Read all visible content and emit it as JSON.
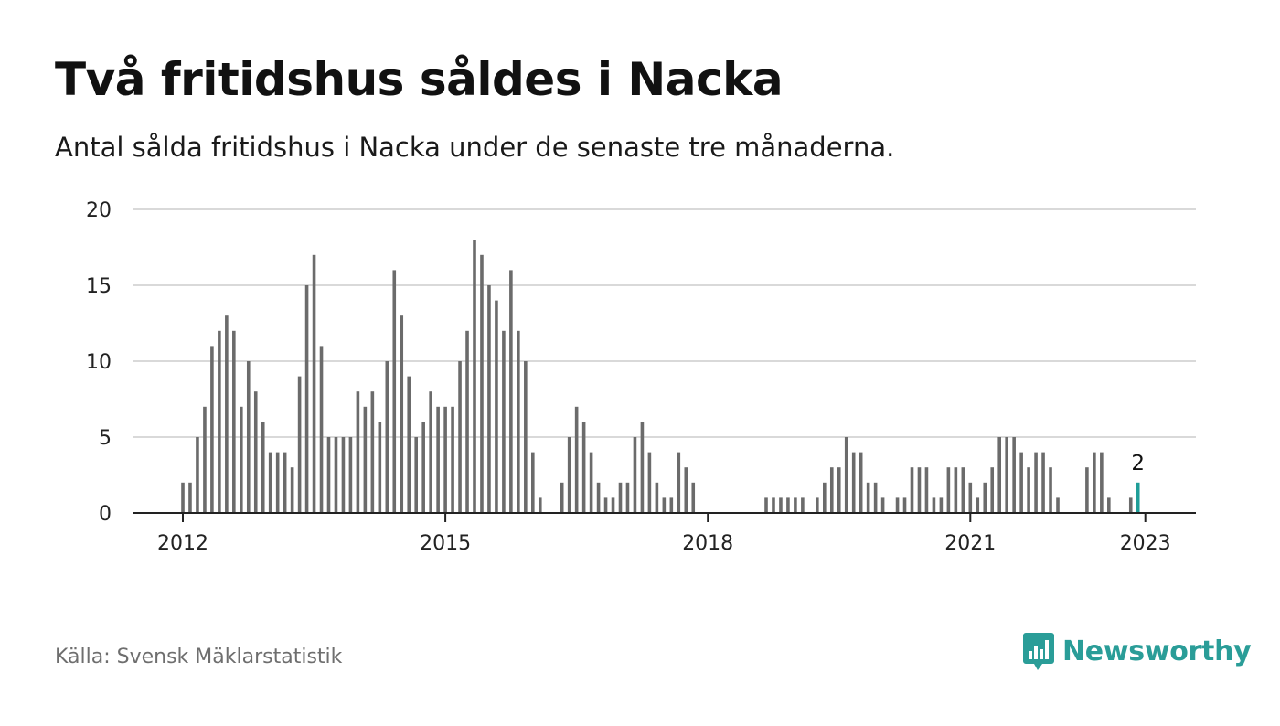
{
  "header": {
    "title": "Två fritidshus såldes i Nacka",
    "subtitle": "Antal sålda fritidshus i Nacka under de senaste tre månaderna."
  },
  "footer": {
    "source": "Källa: Svensk Mäklarstatistik",
    "brand": "Newsworthy"
  },
  "colors": {
    "bar": "#6b6b6b",
    "highlight": "#1f9e98",
    "grid": "#d9d9d9",
    "axis": "#222222",
    "brand": "#2a9d98"
  },
  "chart_data": {
    "type": "bar",
    "title": "Två fritidshus såldes i Nacka",
    "subtitle": "Antal sålda fritidshus i Nacka under de senaste tre månaderna.",
    "ylim": [
      0,
      20
    ],
    "yticks": [
      0,
      5,
      10,
      15,
      20
    ],
    "xticks": [
      "2012",
      "2015",
      "2018",
      "2021",
      "2023"
    ],
    "grid": true,
    "start": "2012-01",
    "highlight_last": true,
    "annotation": "2",
    "values": [
      2,
      2,
      5,
      7,
      11,
      12,
      13,
      12,
      7,
      10,
      8,
      6,
      4,
      4,
      4,
      3,
      9,
      15,
      17,
      11,
      5,
      5,
      5,
      5,
      8,
      7,
      8,
      6,
      10,
      16,
      13,
      9,
      5,
      6,
      8,
      7,
      7,
      7,
      10,
      12,
      18,
      17,
      15,
      14,
      12,
      16,
      12,
      10,
      4,
      1,
      0,
      0,
      2,
      5,
      7,
      6,
      4,
      2,
      1,
      1,
      2,
      2,
      5,
      6,
      4,
      2,
      1,
      1,
      4,
      3,
      2,
      0,
      0,
      0,
      0,
      0,
      0,
      0,
      0,
      0,
      1,
      1,
      1,
      1,
      1,
      1,
      0,
      1,
      2,
      3,
      3,
      5,
      4,
      4,
      2,
      2,
      1,
      0,
      1,
      1,
      3,
      3,
      3,
      1,
      1,
      3,
      3,
      3,
      2,
      1,
      2,
      3,
      5,
      5,
      5,
      4,
      3,
      4,
      4,
      3,
      1,
      0,
      0,
      0,
      3,
      4,
      4,
      1,
      0,
      0,
      1,
      2
    ]
  }
}
